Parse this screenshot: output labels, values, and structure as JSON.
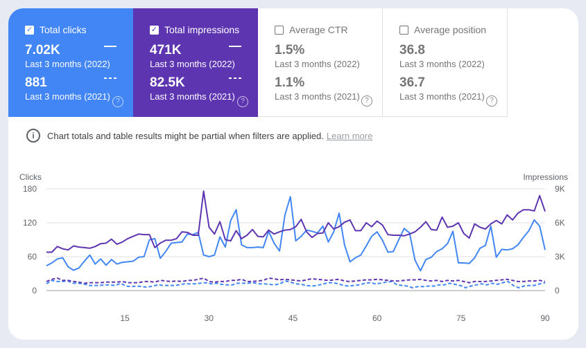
{
  "metrics": {
    "clicks": {
      "label": "Total clicks",
      "value_2022": "7.02K",
      "period_2022": "Last 3 months (2022)",
      "value_2021": "881",
      "period_2021": "Last 3 months (2021)",
      "checked": true,
      "color": "#4285f4"
    },
    "impressions": {
      "label": "Total impressions",
      "value_2022": "471K",
      "period_2022": "Last 3 months (2022)",
      "value_2021": "82.5K",
      "period_2021": "Last 3 months (2021)",
      "checked": true,
      "color": "#5e35b1"
    },
    "ctr": {
      "label": "Average CTR",
      "value_2022": "1.5%",
      "period_2022": "Last 3 months (2022)",
      "value_2021": "1.1%",
      "period_2021": "Last 3 months (2021)",
      "checked": false
    },
    "position": {
      "label": "Average position",
      "value_2022": "36.8",
      "period_2022": "Last 3 months (2022)",
      "value_2021": "36.7",
      "period_2021": "Last 3 months (2021)",
      "checked": false
    }
  },
  "notice": {
    "text": "Chart totals and table results might be partial when filters are applied.",
    "link": "Learn more"
  },
  "icons": {
    "checkbox_checked": "check-icon",
    "help": "help-circle-icon",
    "info": "info-icon"
  },
  "chart_data": {
    "type": "line",
    "left_axis": {
      "label": "Clicks",
      "ticks": [
        "180",
        "120",
        "60",
        "0"
      ],
      "range": [
        0,
        180
      ]
    },
    "right_axis": {
      "label": "Impressions",
      "ticks": [
        "9K",
        "6K",
        "3K",
        "0"
      ],
      "range": [
        0,
        9000
      ]
    },
    "x_ticks": [
      "15",
      "30",
      "45",
      "60",
      "75",
      "90"
    ],
    "x_range": [
      1,
      90
    ],
    "series": [
      {
        "style": "solid",
        "axis": "left",
        "color": "#4285f4",
        "values": [
          44,
          49,
          56,
          58,
          42,
          36,
          40,
          52,
          63,
          47,
          56,
          45,
          55,
          47,
          50,
          51,
          52,
          59,
          60,
          90,
          92,
          57,
          69,
          84,
          85,
          86,
          100,
          99,
          103,
          63,
          60,
          63,
          95,
          77,
          124,
          143,
          81,
          76,
          76,
          77,
          76,
          105,
          84,
          70,
          134,
          166,
          88,
          96,
          107,
          105,
          102,
          114,
          86,
          104,
          137,
          81,
          51,
          58,
          63,
          79,
          96,
          104,
          89,
          68,
          69,
          90,
          110,
          102,
          54,
          35,
          55,
          59,
          69,
          74,
          83,
          105,
          49,
          49,
          48,
          58,
          75,
          80,
          114,
          59,
          73,
          72,
          74,
          81,
          94,
          106,
          125,
          114,
          72
        ]
      },
      {
        "style": "solid",
        "axis": "right",
        "color": "#5e35b1",
        "values": [
          3400,
          3400,
          3900,
          3700,
          3600,
          3950,
          3850,
          3800,
          3750,
          3900,
          4150,
          4200,
          4550,
          4100,
          4300,
          4600,
          4800,
          5000,
          4950,
          4950,
          3800,
          4200,
          4450,
          4450,
          4600,
          5200,
          5150,
          4900,
          4900,
          8800,
          5600,
          5000,
          6100,
          4500,
          4400,
          5300,
          4600,
          4900,
          5400,
          4800,
          4750,
          5350,
          5000,
          5200,
          5350,
          5400,
          5650,
          6300,
          5200,
          4700,
          5050,
          5100,
          6000,
          5450,
          5650,
          6050,
          6250,
          5300,
          5300,
          6000,
          5650,
          6150,
          5800,
          4950,
          4900,
          4900,
          4850,
          5000,
          5200,
          5600,
          6100,
          5400,
          5350,
          6500,
          5600,
          5700,
          6000,
          5050,
          4650,
          5900,
          5600,
          5450,
          5900,
          6200,
          5900,
          6700,
          6250,
          6850,
          7150,
          7150,
          7050,
          8400,
          7000
        ]
      },
      {
        "style": "dashed",
        "axis": "left",
        "color": "#4285f4",
        "values": [
          12,
          18,
          16,
          16,
          17,
          13,
          13,
          12,
          9,
          9,
          9,
          10,
          10,
          9,
          13,
          8,
          7,
          8,
          7,
          6,
          8,
          10,
          9,
          9,
          9,
          10,
          12,
          12,
          12,
          13,
          14,
          12,
          13,
          11,
          10,
          10,
          13,
          13,
          13,
          14,
          12,
          12,
          11,
          10,
          12,
          17,
          15,
          12,
          11,
          9,
          8,
          9,
          11,
          14,
          14,
          12,
          9,
          8,
          9,
          10,
          13,
          14,
          12,
          13,
          15,
          16,
          11,
          9,
          8,
          5,
          7,
          7,
          8,
          8,
          10,
          10,
          13,
          11,
          9,
          5,
          8,
          10,
          12,
          10,
          13,
          11,
          14,
          16,
          9,
          5,
          8,
          9,
          9,
          12,
          14
        ]
      },
      {
        "style": "dashed",
        "axis": "right",
        "color": "#5e35b1",
        "values": [
          800,
          1000,
          1100,
          900,
          900,
          800,
          750,
          650,
          700,
          700,
          700,
          750,
          750,
          750,
          800,
          700,
          700,
          700,
          800,
          800,
          750,
          900,
          850,
          800,
          850,
          800,
          900,
          900,
          1000,
          1100,
          800,
          750,
          800,
          800,
          900,
          900,
          1000,
          800,
          800,
          850,
          900,
          1100,
          1050,
          950,
          1000,
          950,
          900,
          850,
          950,
          1050,
          1000,
          950,
          900,
          950,
          1000,
          850,
          800,
          850,
          900,
          950,
          950,
          1000,
          950,
          900,
          850,
          850,
          900,
          950,
          950,
          1000,
          900,
          850,
          900,
          800,
          900,
          850,
          900,
          800,
          700,
          800,
          800,
          800,
          850,
          900,
          950,
          1000,
          900,
          800,
          800,
          850,
          850,
          900,
          800
        ]
      }
    ]
  }
}
